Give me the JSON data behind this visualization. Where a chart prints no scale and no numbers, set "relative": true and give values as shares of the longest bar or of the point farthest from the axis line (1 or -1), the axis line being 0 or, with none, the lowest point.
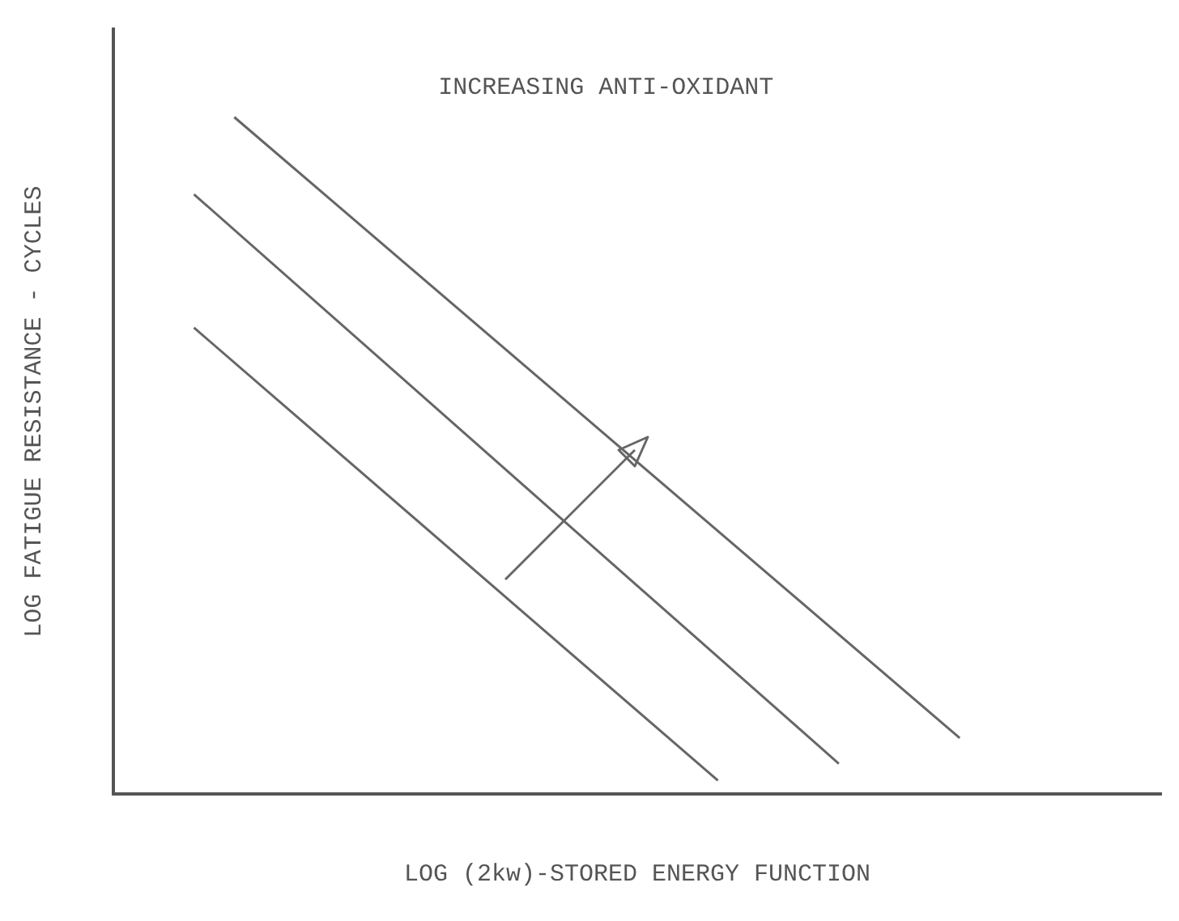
{
  "chart_data": {
    "type": "line",
    "relative": true,
    "xlabel": "LOG (2kw)-STORED ENERGY FUNCTION",
    "ylabel": "LOG FATIGUE RESISTANCE - CYCLES",
    "annotations": [
      "INCREASING ANTI-OXIDANT"
    ],
    "legend": false,
    "grid": false,
    "marker": "none",
    "line_style": "solid",
    "categories": [
      null,
      null,
      null,
      null,
      null,
      null,
      null,
      null,
      null,
      null,
      null,
      null,
      null,
      null,
      null,
      null,
      null,
      null,
      null,
      null,
      null,
      null,
      null,
      null,
      null,
      null,
      null
    ],
    "series": [
      {
        "color": "#666666",
        "values": [
          null,
          null,
          null,
          1.0,
          null,
          null,
          null,
          null,
          null,
          null,
          null,
          null,
          null,
          null,
          null,
          null,
          null,
          null,
          null,
          null,
          null,
          0.083,
          null,
          null,
          null,
          null,
          null
        ]
      },
      {
        "color": "#666666",
        "values": [
          null,
          null,
          0.886,
          null,
          null,
          null,
          null,
          null,
          null,
          null,
          null,
          null,
          null,
          null,
          null,
          null,
          null,
          null,
          0.045,
          null,
          null,
          null,
          null,
          null,
          null,
          null,
          null
        ]
      },
      {
        "color": "#666666",
        "values": [
          null,
          null,
          0.689,
          null,
          null,
          null,
          null,
          null,
          null,
          null,
          null,
          null,
          null,
          null,
          null,
          0.02,
          null,
          null,
          null,
          null,
          null,
          null,
          null,
          null,
          null,
          null,
          null
        ]
      }
    ]
  }
}
